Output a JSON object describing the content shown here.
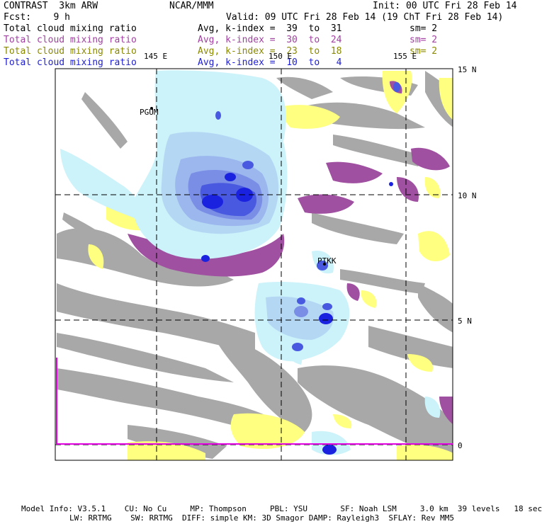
{
  "header": {
    "title_left": "CONTRAST  3km ARW",
    "title_center": "NCAR/MMM",
    "init": "Init: 00 UTC Fri 28 Feb 14",
    "fcst": "Fcst:    9 h",
    "valid": "Valid: 09 UTC Fri 28 Feb 14 (19 ChT Fri 28 Feb 14)"
  },
  "fields": [
    {
      "name": "Total cloud mixing ratio",
      "avg": "Avg, k-index =  39  to  31",
      "sm": "sm= 2",
      "color": "#000000"
    },
    {
      "name": "Total cloud mixing ratio",
      "avg": "Avg, k-index =  30  to  24",
      "sm": "sm= 2",
      "color": "#a040a0"
    },
    {
      "name": "Total cloud mixing ratio",
      "avg": "Avg, k-index =  23  to  18",
      "sm": "sm= 2",
      "color": "#8a8a00"
    },
    {
      "name": "Total cloud mixing ratio",
      "avg": "Avg, k-index =  10  to   4",
      "sm": "",
      "color": "#2020d0"
    }
  ],
  "map": {
    "lon_labels": [
      "145 E",
      "150 E",
      "155 E"
    ],
    "lat_labels": [
      "15 N",
      "10 N",
      "5 N",
      "0"
    ],
    "stations": [
      "PGUM",
      "PTKK"
    ],
    "colors": {
      "gray": "#a8a8a8",
      "purple": "#a050a0",
      "yellow": "#ffff80",
      "light_cyan": "#ccf2fa",
      "blue1": "#b4d8f4",
      "blue2": "#9cb6ee",
      "blue3": "#7a8ee6",
      "blue4": "#4a5ae0",
      "blue5": "#1a22e0",
      "magenta": "#e000e0"
    }
  },
  "footer": {
    "line1": "Model Info: V3.5.1    CU: No Cu     MP: Thompson     PBL: YSU       SF: Noah LSM     3.0 km  39 levels   18 sec",
    "line2": "LW: RRTMG    SW: RRTMG  DIFF: simple KM: 3D Smagor DAMP: Rayleigh3  SFLAY: Rev MM5"
  }
}
